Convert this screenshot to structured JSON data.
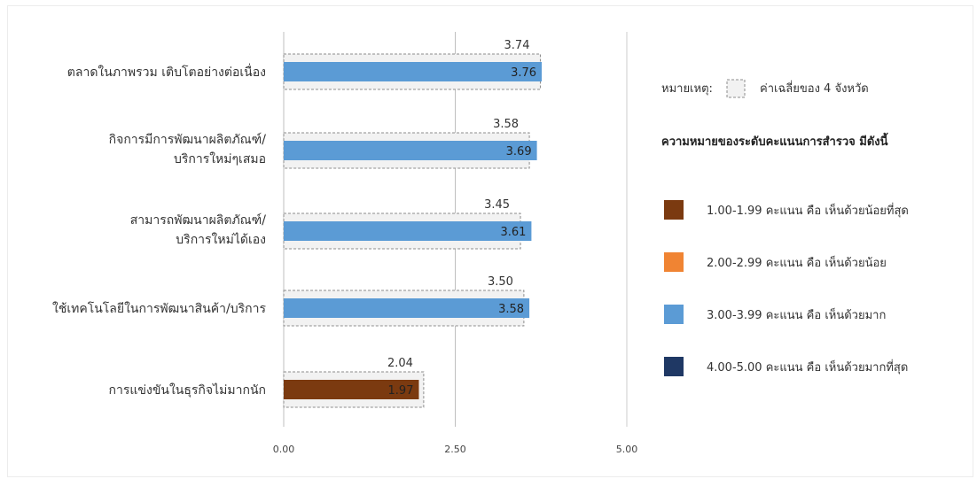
{
  "chart_data": {
    "type": "bar",
    "orientation": "horizontal",
    "categories": [
      [
        "ตลาดในภาพรวม เติบโตอย่างต่อเนื่อง"
      ],
      [
        "กิจการมีการพัฒนาผลิตภัณฑ์/",
        "บริการใหม่ๆเสมอ"
      ],
      [
        "สามารถพัฒนาผลิตภัณฑ์/",
        "บริการใหม่ได้เอง"
      ],
      [
        "ใช้เทคโนโลยีในการพัฒนาสินค้า/บริการ"
      ],
      [
        "การแข่งขันในธุรกิจไม่มากนัก"
      ]
    ],
    "values": [
      3.76,
      3.69,
      3.61,
      3.58,
      1.97
    ],
    "value_labels": [
      "3.76",
      "3.69",
      "3.61",
      "3.58",
      "1.97"
    ],
    "averages": [
      3.74,
      3.58,
      3.45,
      3.5,
      2.04
    ],
    "average_labels": [
      "3.74",
      "3.58",
      "3.45",
      "3.50",
      "2.04"
    ],
    "xlim": [
      0,
      5
    ],
    "xticks": [
      0,
      2.5,
      5
    ],
    "xtick_labels": [
      "0.00",
      "2.50",
      "5.00"
    ],
    "grid": true,
    "legend_position": "right"
  },
  "legend": {
    "note_label": "หมายเหตุ:",
    "note_text": "ค่าเฉลี่ยของ 4 จังหวัด",
    "title": "ความหมายของระดับคะแนนการสำรวจ มีดังนี้",
    "items": [
      {
        "label": "1.00-1.99 คะแนน  คือ เห็นด้วยน้อยที่สุด",
        "color": "#7b3a10"
      },
      {
        "label": "2.00-2.99  คะแนน  คือ เห็นด้วยน้อย",
        "color": "#f08433"
      },
      {
        "label": "3.00-3.99  คะแนน  คือ เห็นด้วยมาก",
        "color": "#5b9bd5"
      },
      {
        "label": "4.00-5.00  คะแนน  คือ เห็นด้วยมากที่สุด",
        "color": "#1f3864"
      }
    ]
  }
}
